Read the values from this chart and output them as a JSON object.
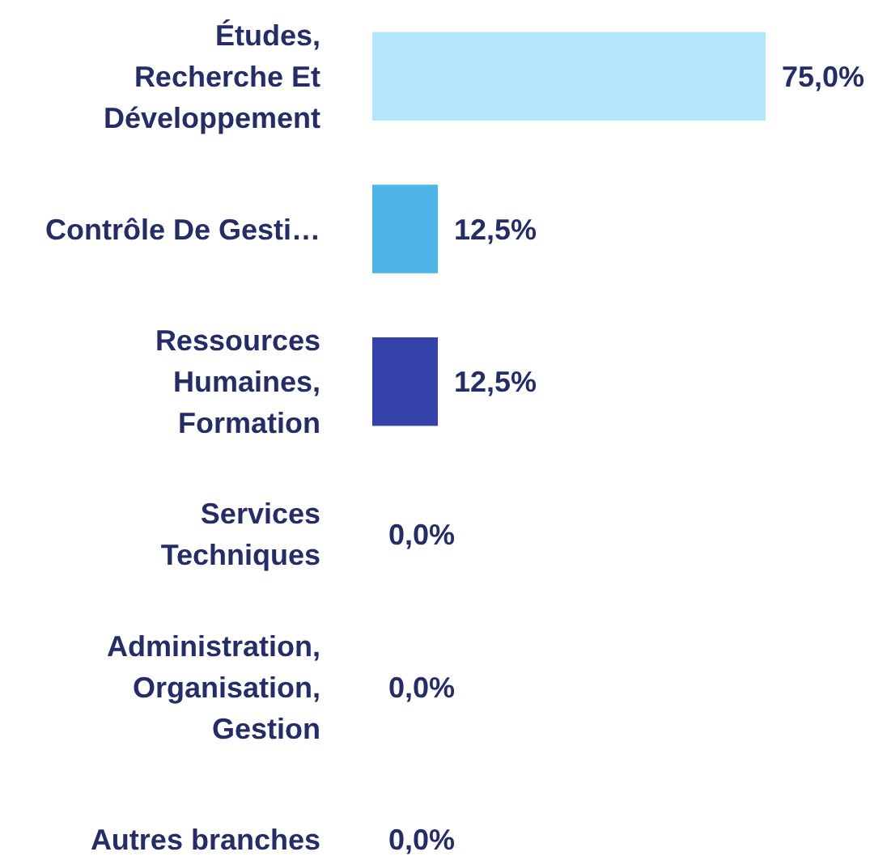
{
  "chart_data": {
    "type": "bar",
    "orientation": "horizontal",
    "categories": [
      "Études, Recherche Et Développement",
      "Contrôle De Gesti…",
      "Ressources Humaines, Formation",
      "Services Techniques",
      "Administration, Organisation, Gestion",
      "Autres branches"
    ],
    "values": [
      75,
      12.5,
      12.5,
      0,
      0,
      0
    ],
    "colors": [
      "#b3e5fc",
      "#4fb5e8",
      "#3341a8",
      "#4fb5e8",
      "#4fb5e8",
      "#4fb5e8"
    ],
    "value_labels": [
      "75,0%",
      "12,5%",
      "12,5%",
      "0,0%",
      "0,0%",
      "0,0%"
    ],
    "data_labels": false
  }
}
